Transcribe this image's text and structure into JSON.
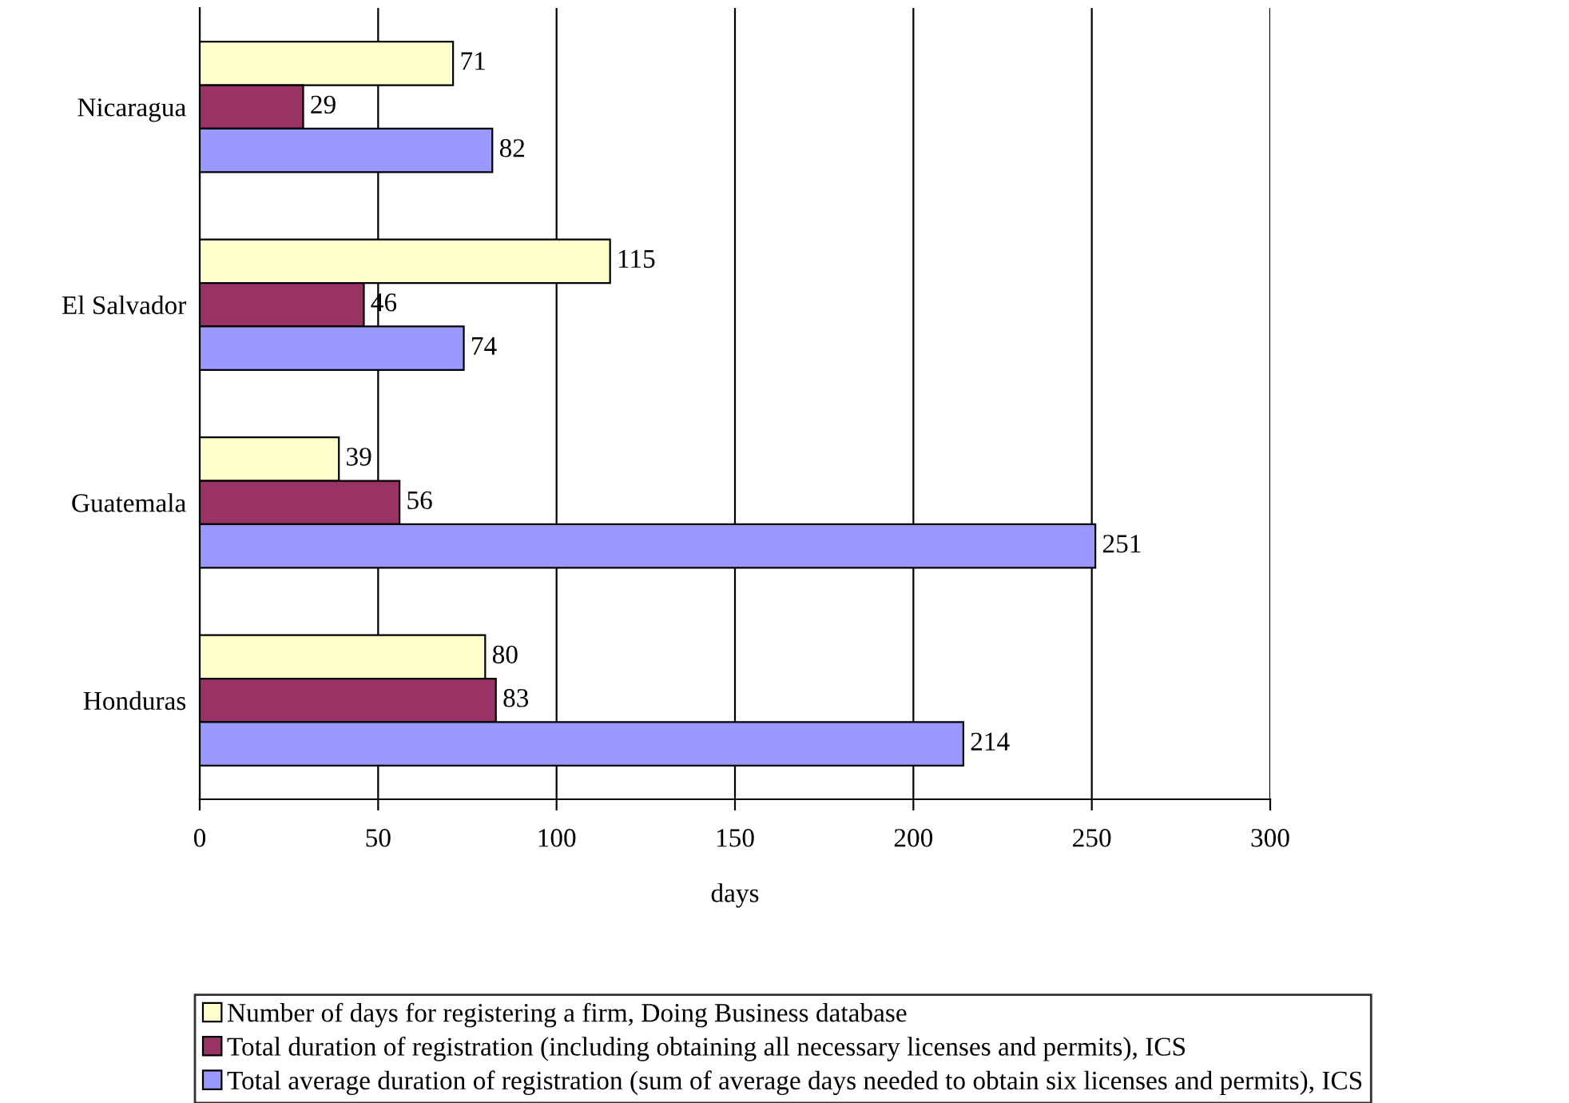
{
  "chart_data": {
    "type": "bar",
    "orientation": "horizontal",
    "xlabel": "days",
    "categories": [
      "Nicaragua",
      "El Salvador",
      "Guatemala",
      "Honduras"
    ],
    "series": [
      {
        "name": "Number of days for registering a firm, Doing Business database",
        "color": "#ffffcc",
        "values": [
          71,
          115,
          39,
          80
        ]
      },
      {
        "name": "Total duration of registration (including obtaining all necessary licenses and permits), ICS",
        "color": "#993366",
        "values": [
          29,
          46,
          56,
          83
        ]
      },
      {
        "name": "Total average duration of registration (sum of average days needed to obtain six licenses and permits), ICS",
        "color": "#9999ff",
        "values": [
          82,
          74,
          251,
          214
        ]
      }
    ],
    "xlim": [
      0,
      300
    ],
    "xticks": [
      0,
      50,
      100,
      150,
      200,
      250,
      300
    ],
    "grid": "x",
    "legend": "bottom",
    "data_labels": true
  }
}
